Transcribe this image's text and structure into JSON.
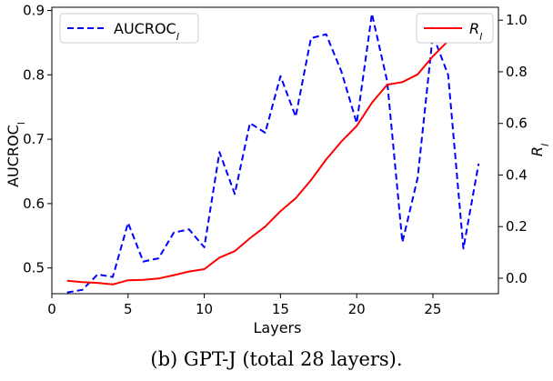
{
  "caption": "(b) GPT-J (total 28 layers).",
  "chart_data": {
    "type": "line",
    "xlabel": "Layers",
    "ylabel_left": "AUCROC",
    "ylabel_left_sub": "l",
    "ylabel_right": "R",
    "ylabel_right_sub": "l",
    "xlim": [
      0,
      29.3
    ],
    "ylim_left": [
      0.46,
      0.905
    ],
    "ylim_right": [
      -0.06,
      1.05
    ],
    "xticks": [
      0,
      5,
      10,
      15,
      20,
      25
    ],
    "yticks_left": [
      0.5,
      0.6,
      0.7,
      0.8,
      0.9
    ],
    "yticks_right": [
      0.0,
      0.2,
      0.4,
      0.6,
      0.8,
      1.0
    ],
    "xtick_labels": [
      "0",
      "5",
      "10",
      "15",
      "20",
      "25"
    ],
    "ytick_labels_left": [
      "0.5",
      "0.6",
      "0.7",
      "0.8",
      "0.9"
    ],
    "ytick_labels_right": [
      "0.0",
      "0.2",
      "0.4",
      "0.6",
      "0.8",
      "1.0"
    ],
    "x": [
      1,
      2,
      3,
      4,
      5,
      6,
      7,
      8,
      9,
      10,
      11,
      12,
      13,
      14,
      15,
      16,
      17,
      18,
      19,
      20,
      21,
      22,
      23,
      24,
      25,
      26,
      27,
      28
    ],
    "series": [
      {
        "name": "AUCROC",
        "name_sub": "l",
        "axis": "left",
        "color": "#0000ff",
        "style": "dashed",
        "legend_position": "upper-left",
        "values": [
          0.462,
          0.466,
          0.49,
          0.486,
          0.57,
          0.51,
          0.515,
          0.555,
          0.56,
          0.532,
          0.68,
          0.615,
          0.725,
          0.71,
          0.798,
          0.735,
          0.857,
          0.863,
          0.805,
          0.725,
          0.895,
          0.79,
          0.54,
          0.64,
          0.862,
          0.8,
          0.53,
          0.662
        ]
      },
      {
        "name": "R",
        "name_sub": "l",
        "axis": "right",
        "color": "#ff0000",
        "style": "solid",
        "legend_position": "upper-right",
        "values": [
          -0.01,
          -0.015,
          -0.018,
          -0.024,
          -0.008,
          -0.006,
          -0.001,
          0.012,
          0.026,
          0.035,
          0.08,
          0.105,
          0.155,
          0.2,
          0.26,
          0.31,
          0.38,
          0.46,
          0.53,
          0.59,
          0.68,
          0.75,
          0.76,
          0.79,
          0.86,
          0.92,
          0.95,
          0.975
        ]
      }
    ]
  }
}
